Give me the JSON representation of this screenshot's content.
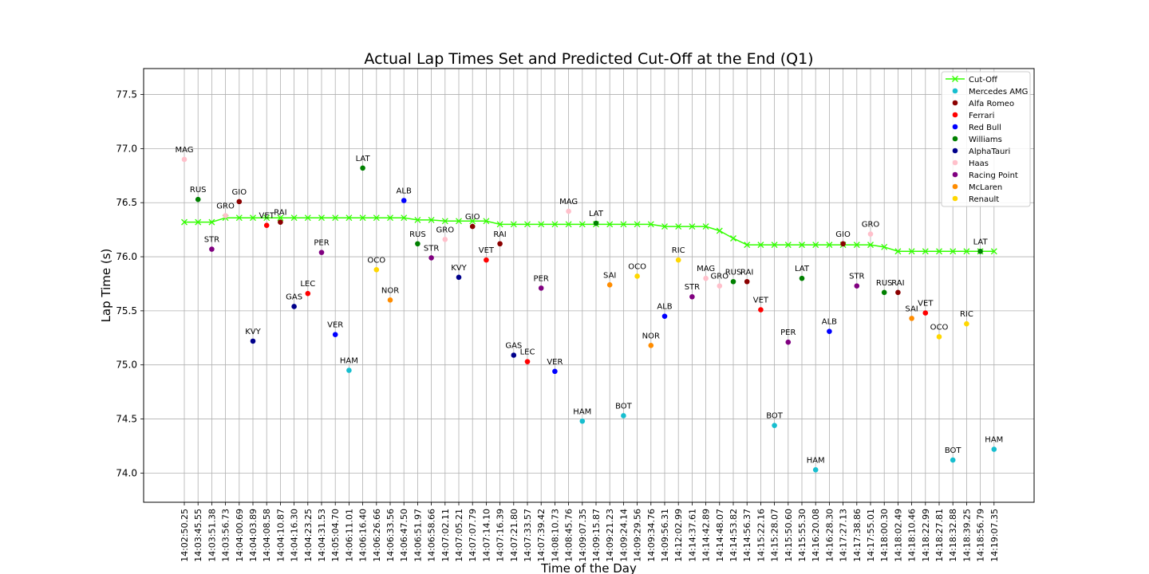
{
  "chart_data": {
    "type": "scatter",
    "title": "Actual Lap Times Set and Predicted Cut-Off at the End (Q1)",
    "xlabel": "Time of the Day",
    "ylabel": "Lap Time (s)",
    "ylim": [
      73.73,
      77.74
    ],
    "yticks": [
      74.0,
      74.5,
      75.0,
      75.5,
      76.0,
      76.5,
      77.0,
      77.5
    ],
    "grid": true,
    "legend_position": "top-right",
    "categories": [
      "14:02:50.25",
      "14:03:45.55",
      "14:03:51.38",
      "14:03:56.73",
      "14:04:00.69",
      "14:04:03.89",
      "14:04:08.58",
      "14:04:10.87",
      "14:04:16.30",
      "14:04:23.25",
      "14:04:31.53",
      "14:05:04.70",
      "14:06:11.01",
      "14:06:16.40",
      "14:06:26.66",
      "14:06:33.56",
      "14:06:47.50",
      "14:06:51.97",
      "14:06:58.66",
      "14:07:02.11",
      "14:07:05.21",
      "14:07:07.79",
      "14:07:14.10",
      "14:07:16.39",
      "14:07:21.80",
      "14:07:33.57",
      "14:07:39.42",
      "14:08:10.73",
      "14:08:45.76",
      "14:09:07.35",
      "14:09:15.87",
      "14:09:21.23",
      "14:09:24.14",
      "14:09:29.56",
      "14:09:34.76",
      "14:09:56.31",
      "14:12:02.99",
      "14:14:37.61",
      "14:14:42.89",
      "14:14:48.07",
      "14:14:53.82",
      "14:14:56.37",
      "14:15:22.16",
      "14:15:28.07",
      "14:15:50.60",
      "14:15:55.30",
      "14:16:20.08",
      "14:16:28.30",
      "14:17:27.13",
      "14:17:38.86",
      "14:17:55.01",
      "14:18:00.30",
      "14:18:02.49",
      "14:18:10.46",
      "14:18:22.99",
      "14:18:27.81",
      "14:18:32.88",
      "14:18:39.25",
      "14:18:56.79",
      "14:19:07.35"
    ],
    "cutoff": {
      "name": "Cut-Off",
      "color": "#33ff00",
      "values": [
        76.32,
        76.32,
        76.32,
        76.36,
        76.36,
        76.36,
        76.36,
        76.36,
        76.36,
        76.36,
        76.36,
        76.36,
        76.36,
        76.36,
        76.36,
        76.36,
        76.36,
        76.34,
        76.34,
        76.33,
        76.33,
        76.33,
        76.33,
        76.3,
        76.3,
        76.3,
        76.3,
        76.3,
        76.3,
        76.3,
        76.3,
        76.3,
        76.3,
        76.3,
        76.3,
        76.28,
        76.28,
        76.28,
        76.28,
        76.24,
        76.17,
        76.11,
        76.11,
        76.11,
        76.11,
        76.11,
        76.11,
        76.11,
        76.11,
        76.11,
        76.11,
        76.09,
        76.05,
        76.05,
        76.05,
        76.05,
        76.05,
        76.05,
        76.05,
        76.05
      ]
    },
    "teams": [
      {
        "name": "Mercedes AMG",
        "color": "#17becf"
      },
      {
        "name": "Alfa Romeo",
        "color": "#8b0000"
      },
      {
        "name": "Ferrari",
        "color": "#ff0000"
      },
      {
        "name": "Red Bull",
        "color": "#0000ff"
      },
      {
        "name": "Williams",
        "color": "#008000"
      },
      {
        "name": "AlphaTauri",
        "color": "#00008b"
      },
      {
        "name": "Haas",
        "color": "#ffc0cb"
      },
      {
        "name": "Racing Point",
        "color": "#800080"
      },
      {
        "name": "McLaren",
        "color": "#ff8c00"
      },
      {
        "name": "Renault",
        "color": "#ffd700"
      }
    ],
    "points": [
      {
        "i": 0,
        "y": 76.9,
        "label": "MAG",
        "team": "Haas"
      },
      {
        "i": 1,
        "y": 76.53,
        "label": "RUS",
        "team": "Williams"
      },
      {
        "i": 2,
        "y": 76.07,
        "label": "STR",
        "team": "Racing Point"
      },
      {
        "i": 3,
        "y": 76.38,
        "label": "GRO",
        "team": "Haas"
      },
      {
        "i": 4,
        "y": 76.51,
        "label": "GIO",
        "team": "Alfa Romeo"
      },
      {
        "i": 5,
        "y": 75.22,
        "label": "KVY",
        "team": "AlphaTauri"
      },
      {
        "i": 6,
        "y": 76.29,
        "label": "VET",
        "team": "Ferrari"
      },
      {
        "i": 7,
        "y": 76.32,
        "label": "RAI",
        "team": "Alfa Romeo"
      },
      {
        "i": 8,
        "y": 75.54,
        "label": "GAS",
        "team": "AlphaTauri"
      },
      {
        "i": 9,
        "y": 75.66,
        "label": "LEC",
        "team": "Ferrari"
      },
      {
        "i": 10,
        "y": 76.04,
        "label": "PER",
        "team": "Racing Point"
      },
      {
        "i": 11,
        "y": 75.28,
        "label": "VER",
        "team": "Red Bull"
      },
      {
        "i": 12,
        "y": 74.95,
        "label": "HAM",
        "team": "Mercedes AMG"
      },
      {
        "i": 13,
        "y": 76.82,
        "label": "LAT",
        "team": "Williams"
      },
      {
        "i": 14,
        "y": 75.88,
        "label": "OCO",
        "team": "Renault"
      },
      {
        "i": 15,
        "y": 75.6,
        "label": "NOR",
        "team": "McLaren"
      },
      {
        "i": 16,
        "y": 76.52,
        "label": "ALB",
        "team": "Red Bull"
      },
      {
        "i": 17,
        "y": 76.12,
        "label": "RUS",
        "team": "Williams"
      },
      {
        "i": 18,
        "y": 75.99,
        "label": "STR",
        "team": "Racing Point"
      },
      {
        "i": 19,
        "y": 76.16,
        "label": "GRO",
        "team": "Haas"
      },
      {
        "i": 20,
        "y": 75.81,
        "label": "KVY",
        "team": "AlphaTauri"
      },
      {
        "i": 21,
        "y": 76.28,
        "label": "GIO",
        "team": "Alfa Romeo"
      },
      {
        "i": 22,
        "y": 75.97,
        "label": "VET",
        "team": "Ferrari"
      },
      {
        "i": 23,
        "y": 76.12,
        "label": "RAI",
        "team": "Alfa Romeo"
      },
      {
        "i": 24,
        "y": 75.09,
        "label": "GAS",
        "team": "AlphaTauri"
      },
      {
        "i": 25,
        "y": 75.03,
        "label": "LEC",
        "team": "Ferrari"
      },
      {
        "i": 26,
        "y": 75.71,
        "label": "PER",
        "team": "Racing Point"
      },
      {
        "i": 27,
        "y": 74.94,
        "label": "VER",
        "team": "Red Bull"
      },
      {
        "i": 28,
        "y": 76.42,
        "label": "MAG",
        "team": "Haas"
      },
      {
        "i": 29,
        "y": 74.48,
        "label": "HAM",
        "team": "Mercedes AMG"
      },
      {
        "i": 30,
        "y": 76.31,
        "label": "LAT",
        "team": "Williams"
      },
      {
        "i": 31,
        "y": 75.74,
        "label": "SAI",
        "team": "McLaren"
      },
      {
        "i": 32,
        "y": 74.53,
        "label": "BOT",
        "team": "Mercedes AMG"
      },
      {
        "i": 33,
        "y": 75.82,
        "label": "OCO",
        "team": "Renault"
      },
      {
        "i": 34,
        "y": 75.18,
        "label": "NOR",
        "team": "McLaren"
      },
      {
        "i": 35,
        "y": 75.45,
        "label": "ALB",
        "team": "Red Bull"
      },
      {
        "i": 36,
        "y": 75.97,
        "label": "RIC",
        "team": "Renault"
      },
      {
        "i": 37,
        "y": 75.63,
        "label": "STR",
        "team": "Racing Point"
      },
      {
        "i": 38,
        "y": 75.8,
        "label": "MAG",
        "team": "Haas"
      },
      {
        "i": 39,
        "y": 75.73,
        "label": "GRO",
        "team": "Haas"
      },
      {
        "i": 40,
        "y": 75.77,
        "label": "RUS",
        "team": "Williams"
      },
      {
        "i": 41,
        "y": 75.77,
        "label": "RAI",
        "team": "Alfa Romeo"
      },
      {
        "i": 42,
        "y": 75.51,
        "label": "VET",
        "team": "Ferrari"
      },
      {
        "i": 43,
        "y": 74.44,
        "label": "BOT",
        "team": "Mercedes AMG"
      },
      {
        "i": 44,
        "y": 75.21,
        "label": "PER",
        "team": "Racing Point"
      },
      {
        "i": 45,
        "y": 75.8,
        "label": "LAT",
        "team": "Williams"
      },
      {
        "i": 46,
        "y": 74.03,
        "label": "HAM",
        "team": "Mercedes AMG"
      },
      {
        "i": 47,
        "y": 75.31,
        "label": "ALB",
        "team": "Red Bull"
      },
      {
        "i": 48,
        "y": 76.12,
        "label": "GIO",
        "team": "Alfa Romeo"
      },
      {
        "i": 49,
        "y": 75.73,
        "label": "STR",
        "team": "Racing Point"
      },
      {
        "i": 50,
        "y": 76.21,
        "label": "GRO",
        "team": "Haas"
      },
      {
        "i": 51,
        "y": 75.67,
        "label": "RUS",
        "team": "Williams"
      },
      {
        "i": 52,
        "y": 75.67,
        "label": "RAI",
        "team": "Alfa Romeo"
      },
      {
        "i": 53,
        "y": 75.43,
        "label": "SAI",
        "team": "McLaren"
      },
      {
        "i": 54,
        "y": 75.48,
        "label": "VET",
        "team": "Ferrari"
      },
      {
        "i": 55,
        "y": 75.26,
        "label": "OCO",
        "team": "Renault"
      },
      {
        "i": 56,
        "y": 74.12,
        "label": "BOT",
        "team": "Mercedes AMG"
      },
      {
        "i": 57,
        "y": 75.38,
        "label": "RIC",
        "team": "Renault"
      },
      {
        "i": 58,
        "y": 76.05,
        "label": "LAT",
        "team": "Williams"
      },
      {
        "i": 59,
        "y": 74.22,
        "label": "HAM",
        "team": "Mercedes AMG"
      }
    ]
  }
}
